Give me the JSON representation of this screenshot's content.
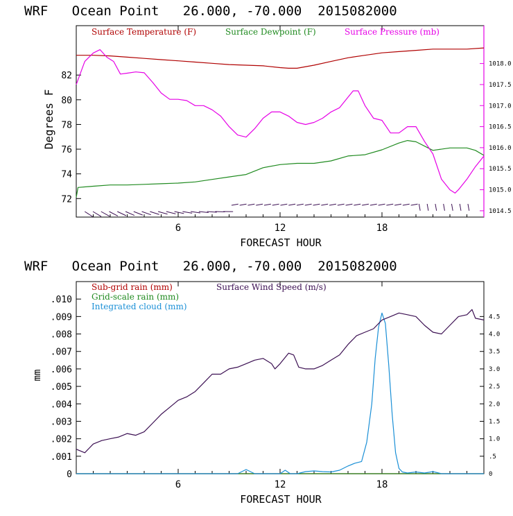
{
  "chart_data": [
    {
      "type": "line",
      "title": "WRF   Ocean Point   26.000, -70.000  2015082000",
      "xlabel": "FORECAST HOUR",
      "ylabel": "Degrees F",
      "xlim": [
        0,
        24
      ],
      "x_ticks": [
        "6",
        "12",
        "18"
      ],
      "ylim": [
        70.5,
        86.0
      ],
      "y_ticks": [
        "72",
        "74",
        "76",
        "78",
        "80",
        "82"
      ],
      "y2lim": [
        1014.35,
        1018.9
      ],
      "y2_ticks": [
        "1014.5",
        "1015.0",
        "1015.5",
        "1016.0",
        "1016.5",
        "1017.0",
        "1017.5",
        "1018.0"
      ],
      "legend": "top",
      "series": [
        {
          "name": "Surface Temperature (F)",
          "axis": "left",
          "color": "#b00000",
          "x": [
            0,
            1,
            2,
            3,
            4,
            5,
            6,
            7,
            8,
            9,
            10,
            11,
            12,
            12.5,
            13,
            14,
            15,
            16,
            17,
            18,
            19,
            20,
            21,
            22,
            23,
            24
          ],
          "y": [
            83.6,
            83.6,
            83.55,
            83.45,
            83.35,
            83.25,
            83.15,
            83.05,
            82.95,
            82.85,
            82.8,
            82.75,
            82.6,
            82.55,
            82.55,
            82.8,
            83.1,
            83.4,
            83.6,
            83.8,
            83.9,
            84.0,
            84.1,
            84.1,
            84.1,
            84.2
          ]
        },
        {
          "name": "Surface Dewpoint (F)",
          "axis": "left",
          "color": "#1f8a1f",
          "x": [
            0,
            0.1,
            1,
            2,
            3,
            4,
            5,
            6,
            7,
            8,
            9,
            10,
            11,
            12,
            13,
            14,
            15,
            16,
            17,
            18,
            19,
            19.5,
            20,
            21,
            22,
            23,
            23.5,
            24
          ],
          "y": [
            72.1,
            72.9,
            73.0,
            73.1,
            73.1,
            73.15,
            73.2,
            73.25,
            73.35,
            73.55,
            73.75,
            73.95,
            74.5,
            74.75,
            74.85,
            74.85,
            75.05,
            75.45,
            75.55,
            75.95,
            76.5,
            76.7,
            76.6,
            75.9,
            76.1,
            76.1,
            75.9,
            75.5
          ]
        },
        {
          "name": "Surface Pressure (mb)",
          "axis": "right",
          "color": "#e600e6",
          "x": [
            0,
            0.5,
            1,
            1.4,
            1.8,
            2.2,
            2.6,
            3,
            3.5,
            4,
            4.5,
            5,
            5.5,
            6,
            6.5,
            7,
            7.5,
            8,
            8.5,
            9,
            9.5,
            10,
            10.5,
            11,
            11.5,
            12,
            12.5,
            13,
            13.5,
            14,
            14.5,
            15,
            15.5,
            16,
            16.3,
            16.6,
            17,
            17.5,
            18,
            18.5,
            19,
            19.5,
            20,
            20.5,
            21,
            21.5,
            22,
            22.3,
            22.5,
            23,
            23.5,
            24
          ],
          "y": [
            1017.5,
            1018.05,
            1018.25,
            1018.33,
            1018.15,
            1018.05,
            1017.75,
            1017.77,
            1017.8,
            1017.78,
            1017.55,
            1017.3,
            1017.15,
            1017.15,
            1017.12,
            1017.0,
            1017.0,
            1016.9,
            1016.75,
            1016.5,
            1016.3,
            1016.25,
            1016.45,
            1016.7,
            1016.85,
            1016.85,
            1016.75,
            1016.6,
            1016.55,
            1016.6,
            1016.7,
            1016.85,
            1016.95,
            1017.2,
            1017.35,
            1017.35,
            1017.0,
            1016.7,
            1016.65,
            1016.35,
            1016.35,
            1016.5,
            1016.5,
            1016.15,
            1015.85,
            1015.25,
            1015.0,
            1014.92,
            1015.0,
            1015.25,
            1015.55,
            1015.8
          ]
        }
      ],
      "wind_barbs": "bottom row"
    },
    {
      "type": "line",
      "title": "WRF   Ocean Point   26.000, -70.000  2015082000",
      "xlabel": "FORECAST HOUR",
      "ylabel": "mm",
      "xlim": [
        0,
        24
      ],
      "x_ticks": [
        "6",
        "12",
        "18"
      ],
      "ylim": [
        0,
        0.011
      ],
      "y_ticks": [
        "0",
        ".001",
        ".002",
        ".003",
        ".004",
        ".005",
        ".006",
        ".007",
        ".008",
        ".009",
        ".010"
      ],
      "y2lim": [
        0,
        5.5
      ],
      "y2_ticks": [
        "0",
        ".5",
        "1.0",
        "1.5",
        "2.0",
        "2.5",
        "3.0",
        "3.5",
        "4.0",
        "4.5"
      ],
      "legend": "top-left",
      "series": [
        {
          "name": "Sub-grid rain (mm)",
          "axis": "left",
          "color": "#b00000",
          "x": [
            0,
            24
          ],
          "y": [
            0,
            0
          ]
        },
        {
          "name": "Grid-scale rain (mm)",
          "axis": "left",
          "color": "#1f8a1f",
          "x": [
            0,
            24
          ],
          "y": [
            0,
            0
          ]
        },
        {
          "name": "Integrated cloud (mm)",
          "axis": "right",
          "color": "#1a8fd6",
          "x": [
            0,
            9.5,
            10,
            10.5,
            11,
            11.5,
            12,
            12.3,
            12.6,
            13,
            13.5,
            14,
            14.5,
            15,
            15.5,
            16,
            16.4,
            16.8,
            17.1,
            17.4,
            17.6,
            17.8,
            18,
            18.2,
            18.4,
            18.6,
            18.8,
            19,
            19.2,
            19.5,
            20,
            20.5,
            21,
            21.5,
            22,
            24
          ],
          "y": [
            0,
            0,
            0.12,
            0.0,
            0.0,
            0.0,
            0.0,
            0.1,
            0.0,
            0.0,
            0.06,
            0.08,
            0.06,
            0.05,
            0.1,
            0.22,
            0.3,
            0.35,
            0.9,
            2.0,
            3.3,
            4.2,
            4.6,
            4.3,
            3.1,
            1.7,
            0.6,
            0.15,
            0.05,
            0.02,
            0.05,
            0.02,
            0.06,
            0.0,
            0.0,
            0.0
          ]
        },
        {
          "name": "Surface Wind Speed (m/s)",
          "axis": "right",
          "color": "#3b0f52",
          "x": [
            0,
            0.5,
            1,
            1.5,
            2,
            2.5,
            3,
            3.5,
            4,
            4.5,
            5,
            5.5,
            6,
            6.5,
            7,
            7.5,
            8,
            8.5,
            9,
            9.5,
            10,
            10.5,
            11,
            11.5,
            11.7,
            12,
            12.5,
            12.8,
            13.1,
            13.5,
            14,
            14.5,
            15,
            15.5,
            16,
            16.5,
            17,
            17.5,
            18,
            18.5,
            19,
            19.5,
            20,
            20.5,
            21,
            21.5,
            22,
            22.5,
            23,
            23.3,
            23.5,
            24
          ],
          "y": [
            0.7,
            0.6,
            0.85,
            0.95,
            1.0,
            1.05,
            1.15,
            1.1,
            1.2,
            1.45,
            1.7,
            1.9,
            2.1,
            2.2,
            2.35,
            2.6,
            2.85,
            2.85,
            3.0,
            3.05,
            3.15,
            3.25,
            3.3,
            3.15,
            3.0,
            3.15,
            3.45,
            3.4,
            3.05,
            3.0,
            3.0,
            3.1,
            3.25,
            3.4,
            3.7,
            3.95,
            4.05,
            4.15,
            4.4,
            4.5,
            4.6,
            4.55,
            4.5,
            4.25,
            4.05,
            4.0,
            4.25,
            4.5,
            4.55,
            4.7,
            4.45,
            4.4
          ]
        }
      ]
    }
  ]
}
